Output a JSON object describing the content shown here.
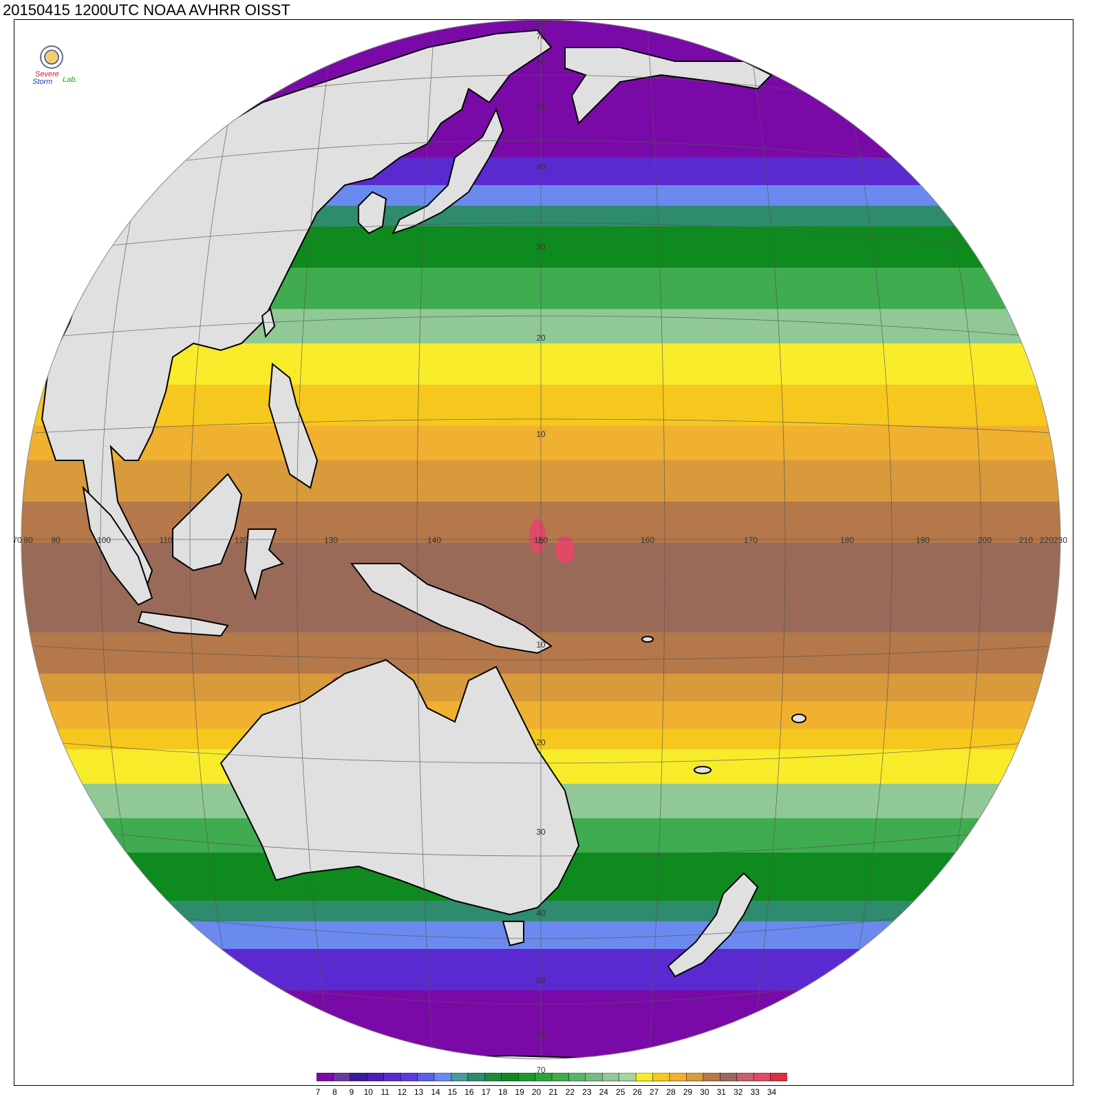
{
  "title": "20150415 1200UTC NOAA AVHRR OISST",
  "logo": {
    "text_top": "Severe",
    "text_bottom": "Storm",
    "text_lab": "Lab."
  },
  "colors": {
    "land": "#e0e0e0",
    "coast": "#000000",
    "grid": "#555555"
  },
  "sst_scale": [
    {
      "value": "7",
      "color": "#7a0aa8"
    },
    {
      "value": "8",
      "color": "#6a3a9a"
    },
    {
      "value": "9",
      "color": "#3b1a9e"
    },
    {
      "value": "10",
      "color": "#4b1fb8"
    },
    {
      "value": "11",
      "color": "#5a2ad0"
    },
    {
      "value": "12",
      "color": "#5a3cdc"
    },
    {
      "value": "13",
      "color": "#5a5ee6"
    },
    {
      "value": "14",
      "color": "#6a8af0"
    },
    {
      "value": "15",
      "color": "#4a9a9a"
    },
    {
      "value": "16",
      "color": "#2e8b6e"
    },
    {
      "value": "17",
      "color": "#1e8a3c"
    },
    {
      "value": "18",
      "color": "#0f8a1e"
    },
    {
      "value": "19",
      "color": "#1a9a2a"
    },
    {
      "value": "20",
      "color": "#2aa43a"
    },
    {
      "value": "21",
      "color": "#40ac50"
    },
    {
      "value": "22",
      "color": "#5ab46a"
    },
    {
      "value": "23",
      "color": "#76bc80"
    },
    {
      "value": "24",
      "color": "#90c896"
    },
    {
      "value": "25",
      "color": "#a8d4a0"
    },
    {
      "value": "26",
      "color": "#f8ec2a"
    },
    {
      "value": "27",
      "color": "#f6c81e"
    },
    {
      "value": "28",
      "color": "#f0b030"
    },
    {
      "value": "29",
      "color": "#d89a3a"
    },
    {
      "value": "30",
      "color": "#b4784a"
    },
    {
      "value": "31",
      "color": "#9a6a58"
    },
    {
      "value": "32",
      "color": "#c46070"
    },
    {
      "value": "33",
      "color": "#e04a66"
    },
    {
      "value": "34",
      "color": "#d83040"
    }
  ],
  "lon_labels": [
    "70",
    "80",
    "90",
    "100",
    "110",
    "120",
    "130",
    "140",
    "150",
    "160",
    "170",
    "180",
    "190",
    "200",
    "210",
    "220",
    "230"
  ],
  "lat_labels": [
    "80",
    "70",
    "60",
    "50",
    "40",
    "30",
    "20",
    "10",
    "0",
    "10",
    "20",
    "30",
    "40",
    "50",
    "60",
    "70"
  ]
}
